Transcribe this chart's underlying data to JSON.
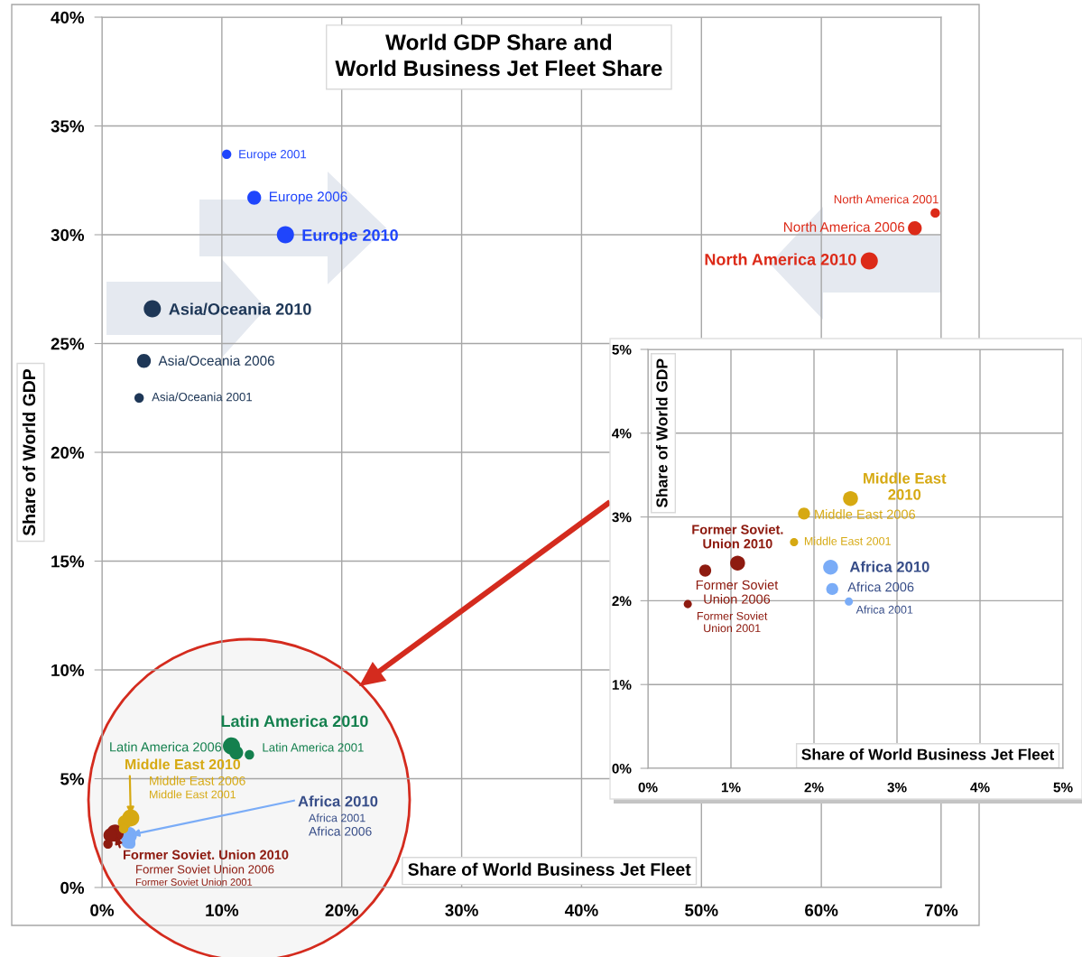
{
  "chart_data": [
    {
      "type": "bubble",
      "title": "World GDP Share and\nWorld Business Jet Fleet Share",
      "xlabel": "Share of World Business Jet Fleet",
      "ylabel": "Share of World GDP",
      "grid": true,
      "xlim": [
        0,
        70
      ],
      "ylim": [
        0,
        40
      ],
      "xticks": [
        {
          "value": 0,
          "label": "0%"
        },
        {
          "value": 10,
          "label": "10%"
        },
        {
          "value": 20,
          "label": "20%"
        },
        {
          "value": 30,
          "label": "30%"
        },
        {
          "value": 40,
          "label": "40%"
        },
        {
          "value": 50,
          "label": "50%"
        },
        {
          "value": 60,
          "label": "60%"
        },
        {
          "value": 70,
          "label": "70%"
        }
      ],
      "yticks": [
        {
          "value": 0,
          "label": "0%"
        },
        {
          "value": 5,
          "label": "5%"
        },
        {
          "value": 10,
          "label": "10%"
        },
        {
          "value": 15,
          "label": "15%"
        },
        {
          "value": 20,
          "label": "20%"
        },
        {
          "value": 25,
          "label": "25%"
        },
        {
          "value": 30,
          "label": "30%"
        },
        {
          "value": 35,
          "label": "35%"
        },
        {
          "value": 40,
          "label": "40%"
        }
      ],
      "series": [
        {
          "color": "#1f45fc",
          "x": [
            10.4,
            12.7,
            15.3
          ],
          "values": [
            33.7,
            31.7,
            30.0
          ],
          "sizes": [
            0.3,
            0.65,
            1
          ]
        },
        {
          "color": "#1e3757",
          "x": [
            3.1,
            3.5,
            4.2
          ],
          "values": [
            22.5,
            24.2,
            26.6
          ],
          "sizes": [
            0.3,
            0.65,
            1
          ]
        },
        {
          "color": "#dc2a18",
          "x": [
            69.5,
            67.8,
            64.0
          ],
          "values": [
            31.0,
            30.3,
            28.8
          ],
          "sizes": [
            0.3,
            0.65,
            1
          ]
        },
        {
          "color": "#14804e",
          "x": [
            12.3,
            11.2,
            10.8
          ],
          "values": [
            6.1,
            6.2,
            6.5
          ],
          "sizes": [
            0.3,
            0.65,
            1
          ]
        },
        {
          "color": "#d6a912",
          "x": [
            1.8,
            1.9,
            2.4
          ],
          "values": [
            2.7,
            3.0,
            3.2
          ],
          "sizes": [
            0.3,
            0.65,
            1
          ]
        },
        {
          "color": "#7aacf7",
          "x": [
            2.4,
            2.2,
            2.2
          ],
          "values": [
            2.0,
            2.1,
            2.4
          ],
          "sizes": [
            0.3,
            0.65,
            1
          ]
        },
        {
          "color": "#8e1b10",
          "x": [
            0.5,
            0.7,
            1.1
          ],
          "values": [
            2.0,
            2.4,
            2.5
          ],
          "sizes": [
            0.3,
            0.65,
            1
          ]
        }
      ],
      "annotations": [
        {
          "text": "Europe 2001",
          "x": 10.4,
          "y": 33.7
        },
        {
          "text": "Europe 2006",
          "x": 12.7,
          "y": 31.7
        },
        {
          "text": "Europe 2010",
          "x": 15.3,
          "y": 30.0
        },
        {
          "text": "Asia/Oceania 2001",
          "x": 3.1,
          "y": 22.5
        },
        {
          "text": "Asia/Oceania 2006",
          "x": 3.5,
          "y": 24.2
        },
        {
          "text": "Asia/Oceania 2010",
          "x": 4.2,
          "y": 26.6
        },
        {
          "text": "North America 2001",
          "x": 69.5,
          "y": 31.0
        },
        {
          "text": "North America 2006",
          "x": 67.8,
          "y": 30.3
        },
        {
          "text": "North America 2010",
          "x": 64.0,
          "y": 28.8
        },
        {
          "text": "Latin America 2001",
          "x": 12.3,
          "y": 6.1
        },
        {
          "text": "Latin America 2006",
          "x": 11.2,
          "y": 6.2
        },
        {
          "text": "Latin America 2010",
          "x": 10.8,
          "y": 6.5
        },
        "Middle East 2001",
        "Middle East 2006",
        {
          "text": "Middle East 2010",
          "x": 2.4,
          "y": 3.2
        },
        "Africa 2001",
        "Africa 2006",
        {
          "text": "Africa 2010",
          "x": 2.2,
          "y": 2.4
        },
        "Former Soviet Union 2001",
        "Former Soviet Union 2006",
        {
          "text": "Former Soviet. Union 2010",
          "x": 1.1,
          "y": 2.5
        }
      ]
    },
    {
      "type": "bubble",
      "xlabel": "Share of World Business Jet Fleet",
      "ylabel": "Share of World GDP",
      "grid": true,
      "xlim": [
        0,
        5
      ],
      "ylim": [
        0,
        5
      ],
      "xticks": [
        {
          "value": 0,
          "label": "0%"
        },
        {
          "value": 1,
          "label": "1%"
        },
        {
          "value": 2,
          "label": "2%"
        },
        {
          "value": 3,
          "label": "3%"
        },
        {
          "value": 4,
          "label": "4%"
        },
        {
          "value": 5,
          "label": "5%"
        }
      ],
      "yticks": [
        {
          "value": 0,
          "label": "0%"
        },
        {
          "value": 1,
          "label": "1%"
        },
        {
          "value": 2,
          "label": "2%"
        },
        {
          "value": 3,
          "label": "3%"
        },
        {
          "value": 4,
          "label": "4%"
        },
        {
          "value": 5,
          "label": "5%"
        }
      ],
      "series": [
        {
          "color": "#d6a912",
          "x": [
            1.76,
            1.88,
            2.44
          ],
          "values": [
            2.7,
            3.04,
            3.22
          ],
          "sizes": [
            0.3,
            0.65,
            1
          ]
        },
        {
          "color": "#7aacf7",
          "x": [
            2.42,
            2.22,
            2.2
          ],
          "values": [
            1.99,
            2.14,
            2.4
          ],
          "sizes": [
            0.3,
            0.65,
            1
          ]
        },
        {
          "color": "#8e1b10",
          "x": [
            0.48,
            0.69,
            1.08
          ],
          "values": [
            1.96,
            2.36,
            2.45
          ],
          "sizes": [
            0.3,
            0.65,
            1
          ]
        }
      ],
      "annotations": [
        {
          "text": "Middle East 2001",
          "x": 1.76,
          "y": 2.7
        },
        {
          "text": "Middle East 2006",
          "x": 1.88,
          "y": 3.04
        },
        {
          "text": "Middle East\n2010",
          "x": 2.44,
          "y": 3.22
        },
        {
          "text": "Africa 2001",
          "x": 2.42,
          "y": 1.99
        },
        {
          "text": "Africa 2006",
          "x": 2.22,
          "y": 2.14
        },
        {
          "text": "Africa 2010",
          "x": 2.2,
          "y": 2.4
        },
        {
          "text": "Former Soviet\nUnion 2001",
          "x": 0.48,
          "y": 1.96
        },
        {
          "text": "Former Soviet\nUnion 2006",
          "x": 0.69,
          "y": 2.36
        },
        {
          "text": "Former Soviet.\nUnion 2010",
          "x": 1.08,
          "y": 2.45
        }
      ]
    }
  ]
}
